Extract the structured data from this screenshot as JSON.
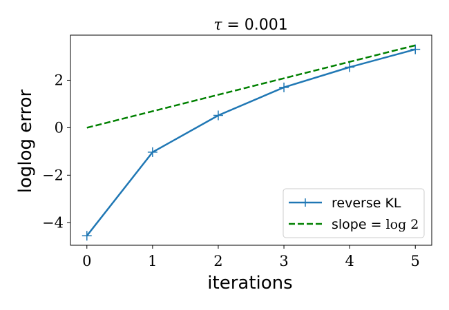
{
  "chart_data": {
    "type": "line",
    "title_symbol": "τ",
    "title_rest": " = 0.001",
    "xlabel": "iterations",
    "ylabel": "loglog error",
    "xlim": [
      -0.25,
      5.25
    ],
    "ylim": [
      -4.95,
      3.9
    ],
    "xticks": [
      0,
      1,
      2,
      3,
      4,
      5
    ],
    "yticks": [
      -4,
      -2,
      0,
      2
    ],
    "ytick_labels": [
      "−4",
      "−2",
      "0",
      "2"
    ],
    "grid": false,
    "legend_position": "lower-right",
    "series": [
      {
        "name": "reverse KL",
        "style": "solid",
        "marker": "plus",
        "color": "#1f77b4",
        "x": [
          0,
          1,
          2,
          3,
          4,
          5
        ],
        "y": [
          -4.55,
          -1.03,
          0.52,
          1.7,
          2.55,
          3.3
        ]
      },
      {
        "name_prefix": "slope = ",
        "name_math": "log 2",
        "style": "dashed",
        "marker": "none",
        "color": "#008000",
        "x": [
          0,
          5
        ],
        "y": [
          0.0,
          3.47
        ]
      }
    ]
  }
}
